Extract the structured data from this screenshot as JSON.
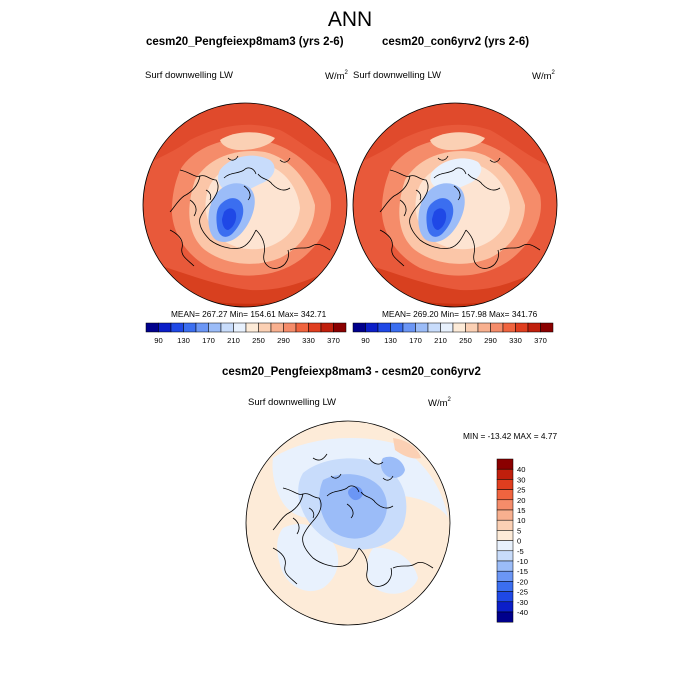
{
  "title": "ANN",
  "panels": [
    {
      "case": "cesm20_Pengfeiexp8mam3 (yrs 2-6)",
      "variable": "Surf downwelling LW",
      "units": "W/m",
      "units_exp": "2",
      "stats": "MEAN= 267.27  Min= 154.61  Max= 342.71"
    },
    {
      "case": "cesm20_con6yrv2 (yrs 2-6)",
      "variable": "Surf downwelling LW",
      "units": "W/m",
      "units_exp": "2",
      "stats": "MEAN= 269.20  Min= 157.98  Max= 341.76"
    },
    {
      "case": "cesm20_Pengfeiexp8mam3 - cesm20_con6yrv2",
      "variable": "Surf downwelling LW",
      "units": "W/m",
      "units_exp": "2",
      "stats": "MIN = -13.42 MAX =   4.77"
    }
  ],
  "colorbar_main": {
    "labels": [
      "90",
      "130",
      "170",
      "210",
      "250",
      "290",
      "330",
      "370"
    ],
    "colors": [
      "#00008c",
      "#0b1ec8",
      "#1f48e6",
      "#3b6ef0",
      "#6b96f5",
      "#9bbcf8",
      "#c8dcfb",
      "#e8f1fd",
      "#fdebd8",
      "#fbd0b4",
      "#f8b08f",
      "#f58c6a",
      "#f0643f",
      "#e03e1f",
      "#c01f0c",
      "#8a0000"
    ]
  },
  "colorbar_diff": {
    "labels": [
      "40",
      "30",
      "25",
      "20",
      "15",
      "10",
      "5",
      "0",
      "-5",
      "-10",
      "-15",
      "-20",
      "-25",
      "-30",
      "-40"
    ],
    "colors": [
      "#8a0000",
      "#c01f0c",
      "#e03e1f",
      "#f0643f",
      "#f58c6a",
      "#f8b08f",
      "#fbd0b4",
      "#fdebd8",
      "#e8f1fd",
      "#c8dcfb",
      "#9bbcf8",
      "#6b96f5",
      "#3b6ef0",
      "#1f48e6",
      "#0b1ec8",
      "#00008c"
    ]
  }
}
